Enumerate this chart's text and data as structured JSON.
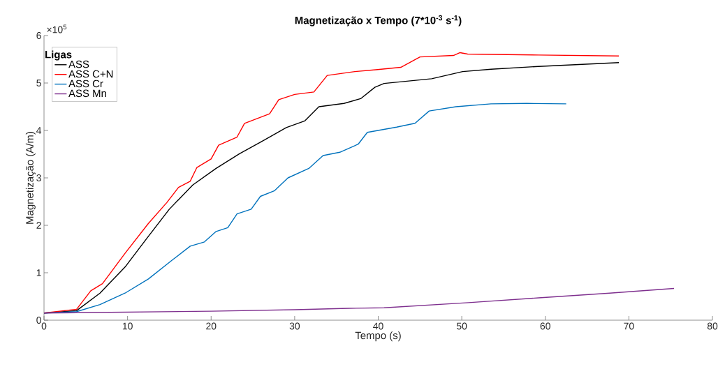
{
  "chart_data": {
    "type": "line",
    "title": "Magnetização x Tempo (7*10$^{-3}$ s$^{-1}$)",
    "xlabel": "Tempo (s)",
    "ylabel": "Magnetização (A/m)",
    "legend_title": "Ligas",
    "annotations": [
      "×10$^{5}$"
    ],
    "xlim": [
      0,
      80
    ],
    "ylim": [
      0,
      6
    ],
    "xticks": [
      0,
      10,
      20,
      30,
      40,
      50,
      60,
      70,
      80
    ],
    "yticks": [
      0,
      1,
      2,
      3,
      4,
      5,
      6
    ],
    "legend": "top left",
    "series": [
      {
        "name": "ASS",
        "color": "#000000",
        "x": [
          0,
          3.9,
          6.7,
          9.7,
          12.2,
          15,
          17.8,
          20.6,
          23.4,
          26.2,
          29,
          31.2,
          32.9,
          35.9,
          37.9,
          39.6,
          40.7,
          46.4,
          50.1,
          53.5,
          59.2,
          68.8
        ],
        "values": [
          0.15,
          0.2,
          0.57,
          1.12,
          1.7,
          2.34,
          2.85,
          3.2,
          3.51,
          3.78,
          4.06,
          4.2,
          4.5,
          4.57,
          4.67,
          4.91,
          4.99,
          5.09,
          5.24,
          5.29,
          5.35,
          5.43
        ]
      },
      {
        "name": "ASS C+N",
        "color": "#ff0000",
        "x": [
          0,
          3.9,
          5.6,
          7,
          9.7,
          12.5,
          14.7,
          16.1,
          17.5,
          18.3,
          20,
          20.9,
          23.1,
          24,
          27,
          28.1,
          30,
          32.3,
          33.9,
          37.2,
          39.7,
          42.7,
          45,
          49,
          49.8,
          50.7,
          59.2,
          68.8
        ],
        "values": [
          0.15,
          0.23,
          0.62,
          0.77,
          1.41,
          2.04,
          2.48,
          2.8,
          2.93,
          3.22,
          3.4,
          3.69,
          3.86,
          4.15,
          4.35,
          4.65,
          4.76,
          4.81,
          5.16,
          5.24,
          5.28,
          5.33,
          5.55,
          5.58,
          5.64,
          5.61,
          5.59,
          5.57
        ]
      },
      {
        "name": "ASS Cr",
        "color": "#0072bd",
        "x": [
          0,
          3.9,
          6.7,
          9.7,
          12.5,
          15.3,
          17.5,
          19.2,
          20.6,
          22,
          23.1,
          24.8,
          25.9,
          27.6,
          29.2,
          31.7,
          33.4,
          35.4,
          37.6,
          38.7,
          42.2,
          44.4,
          46.1,
          49.3,
          53.5,
          57.8,
          62.5
        ],
        "values": [
          0.15,
          0.18,
          0.33,
          0.57,
          0.87,
          1.26,
          1.56,
          1.65,
          1.87,
          1.95,
          2.24,
          2.34,
          2.61,
          2.73,
          3.0,
          3.2,
          3.47,
          3.54,
          3.71,
          3.96,
          4.07,
          4.15,
          4.41,
          4.5,
          4.56,
          4.57,
          4.56
        ]
      },
      {
        "name": "ASS Mn",
        "color": "#7e2f8e",
        "x": [
          0,
          10,
          20,
          30,
          36.5,
          40.7,
          50.8,
          59.2,
          67.7,
          75.4
        ],
        "values": [
          0.15,
          0.17,
          0.19,
          0.22,
          0.25,
          0.26,
          0.37,
          0.47,
          0.57,
          0.67
        ]
      }
    ]
  }
}
